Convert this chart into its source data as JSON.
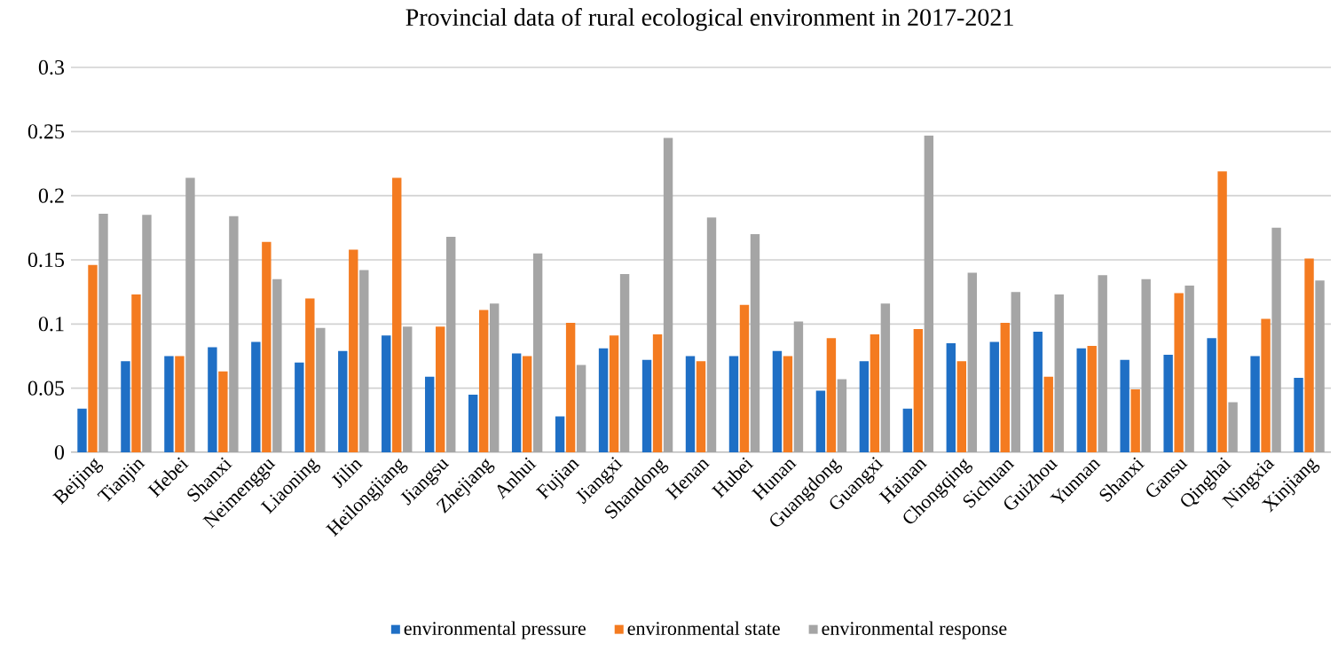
{
  "chart_data": {
    "type": "bar",
    "title": "Provincial data of rural ecological environment in 2017-2021",
    "categories": [
      "Beijing",
      "Tianjin",
      "Hebei",
      "Shanxi",
      "Neimenggu",
      "Liaoning",
      "Jilin",
      "Heilongjiang",
      "Jiangsu",
      "Zhejiang",
      "Anhui",
      "Fujian",
      "Jiangxi",
      "Shandong",
      "Henan",
      "Hubei",
      "Hunan",
      "Guangdong",
      "Guangxi",
      "Hainan",
      "Chongqing",
      "Sichuan",
      "Guizhou",
      "Yunnan",
      "Shanxi",
      "Gansu",
      "Qinghai",
      "Ningxia",
      "Xinjiang"
    ],
    "series": [
      {
        "name": "environmental pressure",
        "color": "#1f6fc5",
        "values": [
          0.034,
          0.071,
          0.075,
          0.082,
          0.086,
          0.07,
          0.079,
          0.091,
          0.059,
          0.045,
          0.077,
          0.028,
          0.081,
          0.072,
          0.075,
          0.075,
          0.079,
          0.048,
          0.071,
          0.034,
          0.085,
          0.086,
          0.094,
          0.081,
          0.072,
          0.076,
          0.089,
          0.075,
          0.058
        ]
      },
      {
        "name": "environmental state",
        "color": "#f47b20",
        "values": [
          0.146,
          0.123,
          0.075,
          0.063,
          0.164,
          0.12,
          0.158,
          0.214,
          0.098,
          0.111,
          0.075,
          0.101,
          0.091,
          0.092,
          0.071,
          0.115,
          0.075,
          0.089,
          0.092,
          0.096,
          0.071,
          0.101,
          0.059,
          0.083,
          0.049,
          0.124,
          0.219,
          0.104,
          0.151
        ]
      },
      {
        "name": "environmental response",
        "color": "#a5a5a5",
        "values": [
          0.186,
          0.185,
          0.214,
          0.184,
          0.135,
          0.097,
          0.142,
          0.098,
          0.168,
          0.116,
          0.155,
          0.068,
          0.139,
          0.245,
          0.183,
          0.17,
          0.102,
          0.057,
          0.116,
          0.247,
          0.14,
          0.125,
          0.123,
          0.138,
          0.135,
          0.13,
          0.039,
          0.175,
          0.134
        ]
      }
    ],
    "ylim": [
      0,
      0.3
    ],
    "yticks": [
      0,
      0.05,
      0.1,
      0.15,
      0.2,
      0.25,
      0.3
    ],
    "grid": "y",
    "legend": "bottom"
  }
}
